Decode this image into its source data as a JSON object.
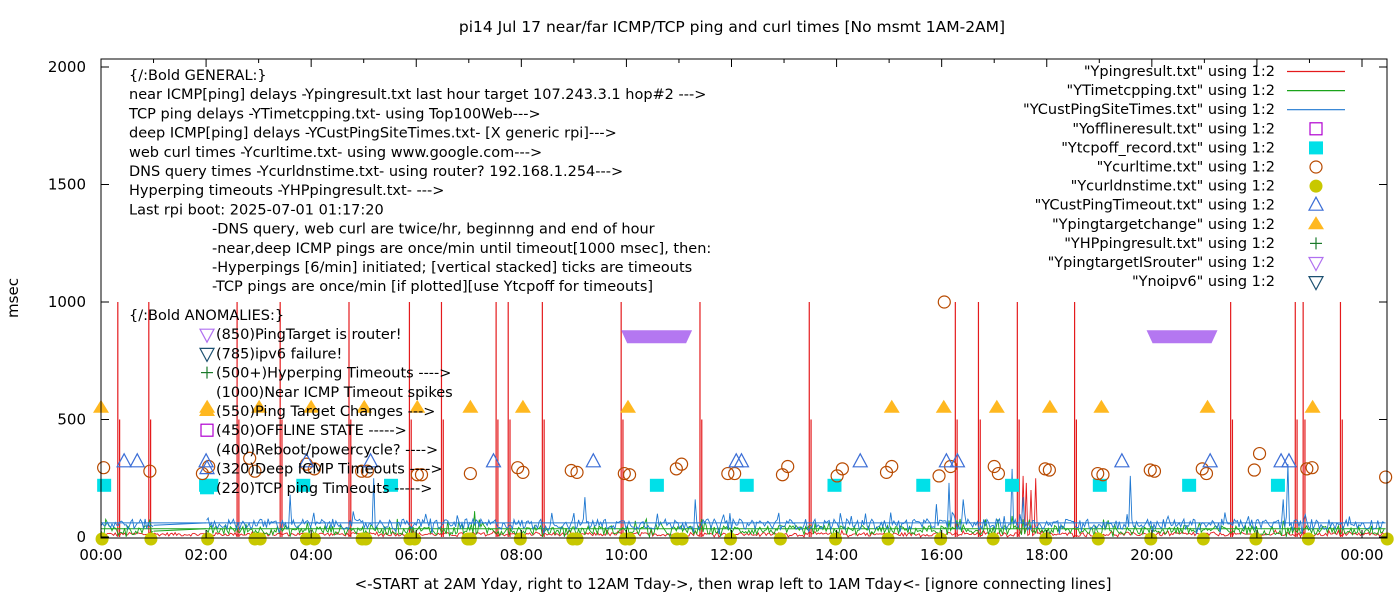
{
  "chart_data": {
    "type": "line",
    "title": "pi14 Jul 17  near/far ICMP/TCP ping and curl times [No msmt 1AM-2AM]",
    "xlabel": "<-START at 2AM Yday, right to 12AM Tday->, then wrap left to 1AM Tday<- [ignore connecting lines]",
    "ylabel": "msec",
    "xlim_hours": [
      0,
      24.5
    ],
    "ylim": [
      0,
      2000
    ],
    "x_ticks": [
      {
        "h": 0,
        "label": "00:00"
      },
      {
        "h": 2,
        "label": "02:00"
      },
      {
        "h": 4,
        "label": "04:00"
      },
      {
        "h": 6,
        "label": "06:00"
      },
      {
        "h": 8,
        "label": "08:00"
      },
      {
        "h": 10,
        "label": "10:00"
      },
      {
        "h": 12,
        "label": "12:00"
      },
      {
        "h": 14,
        "label": "14:00"
      },
      {
        "h": 16,
        "label": "16:00"
      },
      {
        "h": 18,
        "label": "18:00"
      },
      {
        "h": 20,
        "label": "20:00"
      },
      {
        "h": 22,
        "label": "22:00"
      },
      {
        "h": 24,
        "label": "00:00"
      }
    ],
    "y_ticks": [
      0,
      500,
      1000,
      1500,
      2000
    ],
    "grid": false,
    "legend_position": "top-right",
    "legend": [
      {
        "label": "\"Ypingresult.txt\" using 1:2",
        "style": "line",
        "color": "#e41a1c"
      },
      {
        "label": "\"YTimetcpping.txt\" using 1:2",
        "style": "line",
        "color": "#1aa31a"
      },
      {
        "label": "\"YCustPingSiteTimes.txt\" using 1:2",
        "style": "line",
        "color": "#1f78d1"
      },
      {
        "label": "\"Yofflineresult.txt\" using 1:2",
        "style": "open-square",
        "color": "#b000d0"
      },
      {
        "label": "\"Ytcpoff_record.txt\" using 1:2",
        "style": "filled-square",
        "color": "#00e0e8"
      },
      {
        "label": "\"Ycurltime.txt\" using 1:2",
        "style": "open-circle",
        "color": "#b84a00"
      },
      {
        "label": "\"Ycurldnstime.txt\" using 1:2",
        "style": "filled-circle",
        "color": "#c8c800"
      },
      {
        "label": "\"YCustPingTimeout.txt\" using 1:2",
        "style": "open-triangle-up",
        "color": "#3c6ed6"
      },
      {
        "label": "\"Ypingtargetchange\" using 1:2",
        "style": "filled-triangle-up",
        "color": "#ffb820"
      },
      {
        "label": "\"YHPpingresult.txt\" using 1:2",
        "style": "plus",
        "color": "#1a7a2a"
      },
      {
        "label": "\"YpingtargetISrouter\" using 1:2",
        "style": "open-triangle-down",
        "color": "#b070f0"
      },
      {
        "label": "\"Ynoipv6\" using 1:2",
        "style": "open-triangle-down",
        "color": "#1c5070"
      }
    ],
    "series": [
      {
        "name": "Ypingresult.txt",
        "kind": "baseline_with_spikes",
        "baseline_msec": 10,
        "noise_msec": 15,
        "timeout_spikes_hours": [
          0.32,
          0.91,
          2.59,
          3.41,
          4.72,
          5.87,
          6.48,
          7.52,
          7.75,
          8.4,
          9.9,
          11.4,
          13.48,
          16.26,
          16.7,
          17.44,
          18.53,
          21.5,
          22.73,
          22.88,
          23.59
        ],
        "spike_value_msec": 1000,
        "minor_spikes": [
          {
            "h": 17.55,
            "v": 260
          },
          {
            "h": 17.62,
            "v": 230
          },
          {
            "h": 17.7,
            "v": 200
          },
          {
            "h": 17.78,
            "v": 250
          }
        ]
      },
      {
        "name": "YTimetcpping.txt",
        "kind": "noise",
        "baseline_msec": 25,
        "noise_msec": 40,
        "gap_hours": [
          1.0,
          2.0
        ],
        "peaks": [
          {
            "h": 0.1,
            "v": 75
          },
          {
            "h": 7.1,
            "v": 110
          },
          {
            "h": 17.35,
            "v": 90
          }
        ]
      },
      {
        "name": "YCustPingSiteTimes.txt",
        "kind": "noise",
        "baseline_msec": 50,
        "noise_msec": 45,
        "gap_hours": [
          1.0,
          2.0
        ],
        "peaks": [
          {
            "h": 3.6,
            "v": 180
          },
          {
            "h": 5.19,
            "v": 250
          },
          {
            "h": 9.2,
            "v": 170
          },
          {
            "h": 11.3,
            "v": 160
          },
          {
            "h": 15.9,
            "v": 140
          },
          {
            "h": 16.15,
            "v": 230
          },
          {
            "h": 16.4,
            "v": 160
          },
          {
            "h": 17.35,
            "v": 290
          },
          {
            "h": 17.55,
            "v": 170
          },
          {
            "h": 19.6,
            "v": 260
          },
          {
            "h": 22.5,
            "v": 160
          },
          {
            "h": 22.6,
            "v": 310
          }
        ]
      },
      {
        "name": "Ytcpoff_record.txt",
        "kind": "scatter",
        "y": 220,
        "x_hours": [
          0.06,
          2.0,
          2.1,
          3.85,
          5.52,
          10.58,
          12.29,
          13.96,
          15.65,
          17.34,
          19.01,
          20.71,
          22.4
        ]
      },
      {
        "name": "Ycurltime.txt",
        "kind": "scatter",
        "points": [
          {
            "h": 0.05,
            "v": 295
          },
          {
            "h": 0.93,
            "v": 280
          },
          {
            "h": 1.93,
            "v": 270
          },
          {
            "h": 2.05,
            "v": 300
          },
          {
            "h": 2.83,
            "v": 335
          },
          {
            "h": 2.93,
            "v": 280
          },
          {
            "h": 3.91,
            "v": 310
          },
          {
            "h": 4.06,
            "v": 290
          },
          {
            "h": 4.96,
            "v": 280
          },
          {
            "h": 5.07,
            "v": 280
          },
          {
            "h": 6.02,
            "v": 265
          },
          {
            "h": 6.1,
            "v": 265
          },
          {
            "h": 7.03,
            "v": 270
          },
          {
            "h": 7.93,
            "v": 295
          },
          {
            "h": 8.03,
            "v": 275
          },
          {
            "h": 8.95,
            "v": 283
          },
          {
            "h": 9.06,
            "v": 275
          },
          {
            "h": 9.96,
            "v": 270
          },
          {
            "h": 10.06,
            "v": 265
          },
          {
            "h": 10.95,
            "v": 290
          },
          {
            "h": 11.05,
            "v": 310
          },
          {
            "h": 11.93,
            "v": 270
          },
          {
            "h": 12.06,
            "v": 270
          },
          {
            "h": 12.97,
            "v": 265
          },
          {
            "h": 13.07,
            "v": 300
          },
          {
            "h": 14.01,
            "v": 260
          },
          {
            "h": 14.11,
            "v": 290
          },
          {
            "h": 14.95,
            "v": 275
          },
          {
            "h": 15.05,
            "v": 300
          },
          {
            "h": 15.95,
            "v": 260
          },
          {
            "h": 16.05,
            "v": 1000
          },
          {
            "h": 16.17,
            "v": 300
          },
          {
            "h": 17.0,
            "v": 300
          },
          {
            "h": 17.08,
            "v": 270
          },
          {
            "h": 17.97,
            "v": 290
          },
          {
            "h": 18.05,
            "v": 285
          },
          {
            "h": 18.97,
            "v": 270
          },
          {
            "h": 19.07,
            "v": 265
          },
          {
            "h": 19.97,
            "v": 285
          },
          {
            "h": 20.05,
            "v": 280
          },
          {
            "h": 20.96,
            "v": 290
          },
          {
            "h": 21.04,
            "v": 270
          },
          {
            "h": 21.95,
            "v": 285
          },
          {
            "h": 22.05,
            "v": 355
          },
          {
            "h": 22.95,
            "v": 290
          },
          {
            "h": 23.05,
            "v": 295
          },
          {
            "h": 24.45,
            "v": 255
          }
        ]
      },
      {
        "name": "Ycurldnstime.txt",
        "kind": "scatter",
        "y": 0,
        "x_hours": [
          0.02,
          0.95,
          2.03,
          2.93,
          3.03,
          3.91,
          4.06,
          4.97,
          5.04,
          5.88,
          5.97,
          6.98,
          7.03,
          7.98,
          8.98,
          9.06,
          9.98,
          10.06,
          10.96,
          11.06,
          11.98,
          12.93,
          13.98,
          14.98,
          15.98,
          16.98,
          17.98,
          18.98,
          19.98,
          20.98,
          21.98,
          22.98,
          24.48
        ]
      },
      {
        "name": "YCustPingTimeout.txt",
        "kind": "scatter",
        "y": 320,
        "x_hours": [
          0.44,
          0.69,
          2.0,
          3.91,
          5.13,
          7.47,
          9.37,
          12.09,
          12.19,
          14.45,
          16.09,
          16.3,
          19.43,
          21.11,
          22.46,
          22.61
        ]
      },
      {
        "name": "Ypingtargetchange",
        "kind": "scatter",
        "y": 550,
        "x_hours": [
          0.0,
          2.02,
          3.01,
          4.0,
          5.01,
          6.02,
          7.03,
          8.03,
          10.03,
          15.05,
          16.04,
          17.05,
          18.06,
          19.04,
          21.06,
          23.06
        ]
      },
      {
        "name": "YpingtargetISrouter",
        "kind": "dense_band",
        "y": 850,
        "ranges_hours": [
          [
            9.9,
            11.25
          ],
          [
            19.9,
            21.25
          ]
        ]
      }
    ],
    "annotations": {
      "general_header": "{/:Bold GENERAL:}",
      "general_lines": [
        "near ICMP[ping] delays -Ypingresult.txt last hour target 107.243.3.1 hop#2 --->",
        "TCP ping delays -YTimetcpping.txt- using Top100Web--->",
        "deep ICMP[ping] delays -YCustPingSiteTimes.txt- [X generic rpi]--->",
        "web curl times -Ycurltime.txt- using www.google.com--->",
        "DNS query times -Ycurldnstime.txt- using router? 192.168.1.254--->",
        "Hyperping timeouts -YHPpingresult.txt- --->",
        "Last rpi boot: 2025-07-01 01:17:20"
      ],
      "notes": [
        "-DNS query, web curl are twice/hr, beginnng and end of hour",
        "-near,deep ICMP pings are once/min until timeout[1000 msec], then:",
        "  -Hyperpings [6/min] initiated; [vertical stacked] ticks are timeouts",
        "-TCP pings are once/min [if plotted][use Ytcpoff for timeouts]"
      ],
      "anomalies_header": "{/:Bold ANOMALIES:}",
      "anomalies": [
        {
          "symbol": "open-triangle-down",
          "color": "#b070f0",
          "text": "(850)PingTarget is router!"
        },
        {
          "symbol": "open-triangle-down",
          "color": "#1c5070",
          "text": "(785)ipv6 failure!"
        },
        {
          "symbol": "plus",
          "color": "#1a7a2a",
          "text": "(500+)Hyperping Timeouts ---->"
        },
        {
          "symbol": "none",
          "color": "",
          "text": "(1000)Near ICMP Timeout spikes"
        },
        {
          "symbol": "filled-triangle-up",
          "color": "#ffb820",
          "text": "(550)Ping Target Changes --->"
        },
        {
          "symbol": "open-square",
          "color": "#b000d0",
          "text": "(450)OFFLINE STATE ----->"
        },
        {
          "symbol": "none",
          "color": "",
          "text": "(400)Reboot/powercycle? ---->"
        },
        {
          "symbol": "open-triangle-up",
          "color": "#3c6ed6",
          "text": "(320)Deep ICMP Timeouts ---->"
        },
        {
          "symbol": "filled-square",
          "color": "#00e0e8",
          "text": "(220)TCP ping Timeouts ----->"
        }
      ]
    }
  }
}
